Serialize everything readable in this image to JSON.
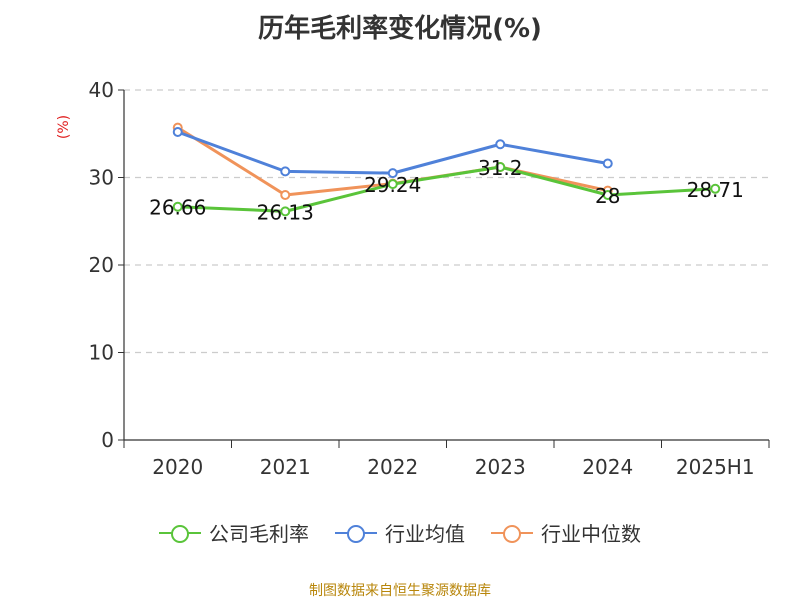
{
  "chart_data": {
    "type": "line",
    "title": "历年毛利率变化情况(%)",
    "ylabel": "(%)",
    "xlabel": "",
    "categories": [
      "2020",
      "2021",
      "2022",
      "2023",
      "2024",
      "2025H1"
    ],
    "ylim": [
      0,
      40
    ],
    "yticks": [
      0,
      10,
      20,
      30,
      40
    ],
    "grid": true,
    "legend_position": "bottom",
    "series": [
      {
        "name": "公司毛利率",
        "color": "#5ac43a",
        "values": [
          26.66,
          26.13,
          29.24,
          31.2,
          28,
          28.71
        ],
        "labels": [
          "26.66",
          "26.13",
          "29.24",
          "31.2",
          "28",
          "28.71"
        ]
      },
      {
        "name": "行业均值",
        "color": "#4f81d9",
        "values": [
          35.2,
          30.7,
          30.5,
          33.8,
          31.6,
          null
        ]
      },
      {
        "name": "行业中位数",
        "color": "#f0935a",
        "values": [
          35.7,
          28.0,
          29.3,
          31.2,
          28.5,
          null
        ]
      }
    ]
  },
  "source": "制图数据来自恒生聚源数据库"
}
